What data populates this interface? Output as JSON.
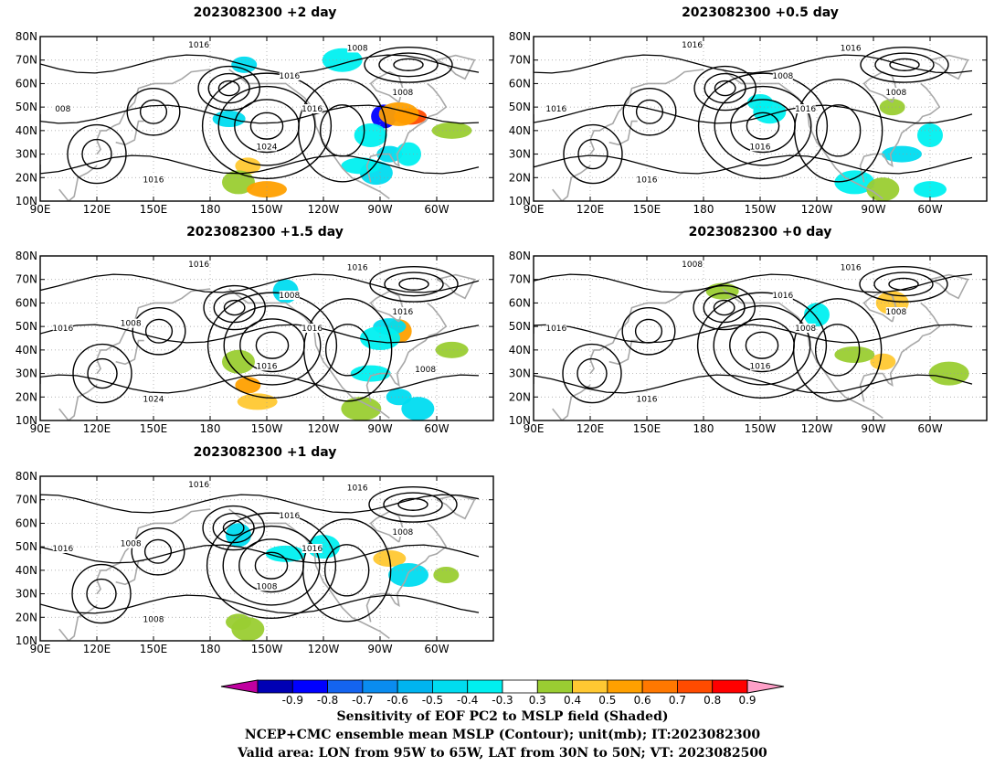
{
  "panels": [
    {
      "id": "p2",
      "title": "2023082300 +2 day",
      "isobar_labels": [
        "1016",
        "1008",
        "1016",
        "1016",
        "1024",
        "1016",
        "1008",
        "008"
      ],
      "shade_blobs": [
        {
          "lon": -160,
          "lat": 25,
          "v": 0.5
        },
        {
          "lon": -165,
          "lat": 18,
          "v": 0.4
        },
        {
          "lon": -150,
          "lat": 15,
          "v": 0.6
        },
        {
          "lon": -88,
          "lat": 46,
          "v": -0.8
        },
        {
          "lon": -74,
          "lat": 46,
          "v": 0.8
        },
        {
          "lon": -80,
          "lat": 47,
          "v": 0.6
        },
        {
          "lon": -85,
          "lat": 30,
          "v": -0.4
        },
        {
          "lon": -92,
          "lat": 22,
          "v": -0.4
        },
        {
          "lon": -100,
          "lat": 25,
          "v": -0.3
        },
        {
          "lon": -75,
          "lat": 30,
          "v": -0.3
        },
        {
          "lon": -170,
          "lat": 45,
          "v": -0.4
        },
        {
          "lon": -110,
          "lat": 70,
          "v": -0.3
        },
        {
          "lon": -162,
          "lat": 68,
          "v": -0.4
        },
        {
          "lon": -95,
          "lat": 38,
          "v": -0.3
        },
        {
          "lon": -52,
          "lat": 40,
          "v": 0.4
        }
      ]
    },
    {
      "id": "p05",
      "title": "2023082300 +0.5 day",
      "isobar_labels": [
        "1016",
        "1016",
        "1008",
        "1016",
        "1016",
        "1016",
        "1008",
        "1016"
      ],
      "shade_blobs": [
        {
          "lon": -150,
          "lat": 52,
          "v": -0.3
        },
        {
          "lon": -145,
          "lat": 48,
          "v": -0.3
        },
        {
          "lon": -75,
          "lat": 30,
          "v": -0.4
        },
        {
          "lon": -60,
          "lat": 38,
          "v": -0.3
        },
        {
          "lon": -60,
          "lat": 15,
          "v": -0.3
        },
        {
          "lon": -100,
          "lat": 18,
          "v": -0.3
        },
        {
          "lon": -80,
          "lat": 50,
          "v": 0.4
        },
        {
          "lon": -85,
          "lat": 15,
          "v": 0.4
        }
      ]
    },
    {
      "id": "p15",
      "title": "2023082300 +1.5 day",
      "isobar_labels": [
        "1016",
        "1016",
        "1008",
        "1016",
        "1016",
        "1024",
        "1016",
        "1016",
        "1008",
        "1008"
      ],
      "shade_blobs": [
        {
          "lon": -160,
          "lat": 25,
          "v": 0.6
        },
        {
          "lon": -165,
          "lat": 35,
          "v": 0.4
        },
        {
          "lon": -155,
          "lat": 18,
          "v": 0.5
        },
        {
          "lon": -80,
          "lat": 48,
          "v": 0.6
        },
        {
          "lon": -85,
          "lat": 50,
          "v": -0.4
        },
        {
          "lon": -90,
          "lat": 45,
          "v": -0.3
        },
        {
          "lon": -80,
          "lat": 20,
          "v": -0.4
        },
        {
          "lon": -70,
          "lat": 15,
          "v": -0.4
        },
        {
          "lon": -95,
          "lat": 30,
          "v": -0.3
        },
        {
          "lon": -140,
          "lat": 65,
          "v": -0.4
        },
        {
          "lon": -52,
          "lat": 40,
          "v": 0.4
        },
        {
          "lon": -100,
          "lat": 15,
          "v": 0.4
        }
      ]
    },
    {
      "id": "p0",
      "title": "2023082300 +0 day",
      "isobar_labels": [
        "1008",
        "1016",
        "1016",
        "1008",
        "1016",
        "1016",
        "1008",
        "1016"
      ],
      "shade_blobs": [
        {
          "lon": -85,
          "lat": 35,
          "v": 0.5
        },
        {
          "lon": -80,
          "lat": 60,
          "v": 0.5
        },
        {
          "lon": -100,
          "lat": 38,
          "v": 0.4
        },
        {
          "lon": -120,
          "lat": 55,
          "v": -0.3
        },
        {
          "lon": -170,
          "lat": 65,
          "v": 0.4
        },
        {
          "lon": -50,
          "lat": 30,
          "v": 0.4
        }
      ]
    },
    {
      "id": "p1",
      "title": "2023082300 +1 day",
      "isobar_labels": [
        "1016",
        "1016",
        "1016",
        "1016",
        "1008",
        "1008",
        "1008",
        "1016",
        "1008"
      ],
      "shade_blobs": [
        {
          "lon": -165,
          "lat": 18,
          "v": 0.4
        },
        {
          "lon": -160,
          "lat": 15,
          "v": 0.4
        },
        {
          "lon": -140,
          "lat": 47,
          "v": -0.3
        },
        {
          "lon": -165,
          "lat": 55,
          "v": -0.4
        },
        {
          "lon": -85,
          "lat": 45,
          "v": 0.5
        },
        {
          "lon": -75,
          "lat": 38,
          "v": -0.4
        },
        {
          "lon": -55,
          "lat": 38,
          "v": 0.4
        },
        {
          "lon": -120,
          "lat": 50,
          "v": -0.3
        }
      ]
    }
  ],
  "axes": {
    "lat_ticks": [
      "80N",
      "70N",
      "60N",
      "50N",
      "40N",
      "30N",
      "20N",
      "10N"
    ],
    "lon_ticks": [
      "90E",
      "120E",
      "150E",
      "180",
      "150W",
      "120W",
      "90W",
      "60W"
    ]
  },
  "colorbar": {
    "labels": [
      "-0.9",
      "-0.8",
      "-0.7",
      "-0.6",
      "-0.5",
      "-0.4",
      "-0.3",
      "0.3",
      "0.4",
      "0.5",
      "0.6",
      "0.7",
      "0.8",
      "0.9"
    ],
    "colors": [
      "#0000b4",
      "#0000ff",
      "#1464f0",
      "#0a8cf0",
      "#00b4f0",
      "#00dcf0",
      "#00f0f0",
      "#ffffff",
      "#9acd32",
      "#ffc832",
      "#ffa000",
      "#ff7800",
      "#ff4b00",
      "#ff0000"
    ],
    "under_color": "#c000a0",
    "over_color": "#ffa0c8"
  },
  "caption": {
    "line1": "Sensitivity of EOF PC2 to MSLP field (Shaded)",
    "line2": "NCEP+CMC ensemble mean MSLP (Contour); unit(mb); IT:2023082300",
    "line3": "Valid area: LON from 95W to 65W, LAT from 30N to 50N; VT: 2023082500"
  }
}
